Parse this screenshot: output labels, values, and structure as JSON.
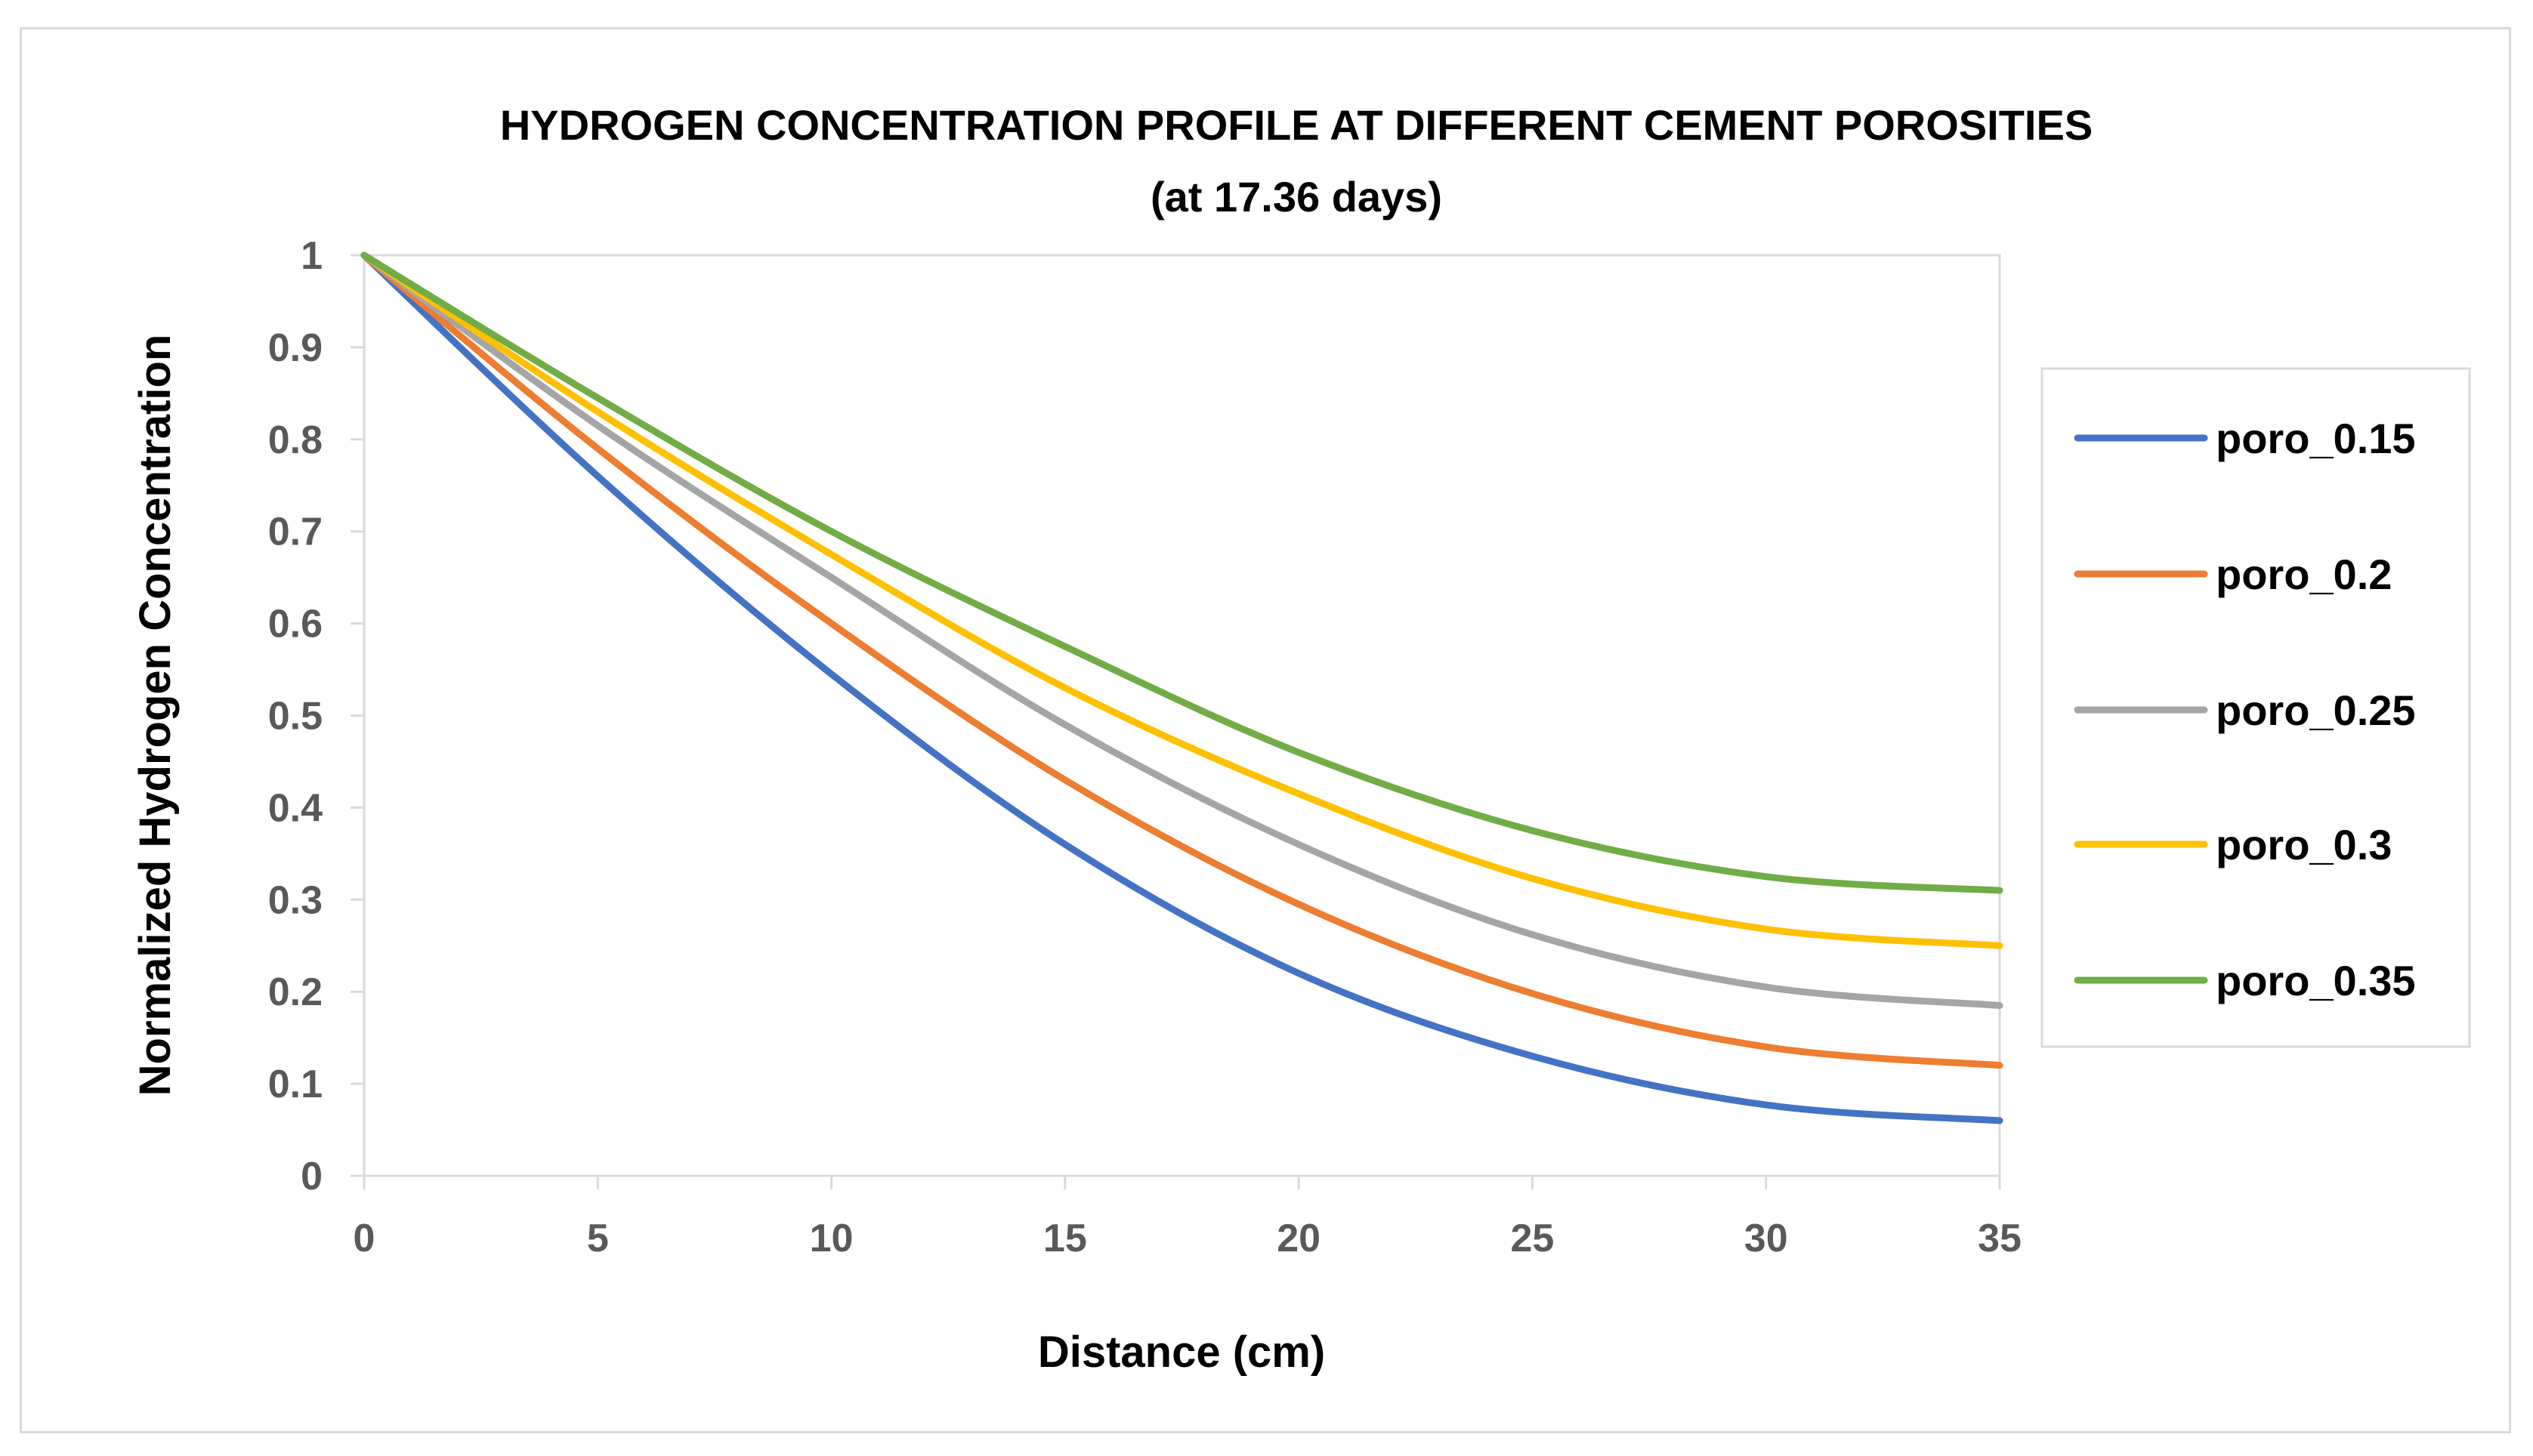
{
  "chart_data": {
    "type": "line",
    "title": "HYDROGEN CONCENTRATION PROFILE AT DIFFERENT CEMENT POROSITIES",
    "subtitle": "(at  17.36 days)",
    "xlabel": "Distance (cm)",
    "ylabel": "Normalized Hydrogen Concentration",
    "xlim": [
      0,
      35
    ],
    "ylim": [
      0,
      1
    ],
    "xticks": [
      "0",
      "5",
      "10",
      "15",
      "20",
      "25",
      "30",
      "35"
    ],
    "yticks": [
      "0",
      "0.1",
      "0.2",
      "0.3",
      "0.4",
      "0.5",
      "0.6",
      "0.7",
      "0.8",
      "0.9",
      "1"
    ],
    "grid": false,
    "legend_position": "right",
    "x": [
      0,
      5,
      10,
      15,
      20,
      25,
      30,
      35
    ],
    "series": [
      {
        "name": "poro_0.15",
        "color": "#4472c4",
        "values": [
          1.0,
          0.76,
          0.545,
          0.36,
          0.22,
          0.13,
          0.077,
          0.06
        ]
      },
      {
        "name": "poro_0.2",
        "color": "#ed7d31",
        "values": [
          1.0,
          0.79,
          0.6,
          0.43,
          0.295,
          0.198,
          0.14,
          0.12
        ]
      },
      {
        "name": "poro_0.25",
        "color": "#a5a5a5",
        "values": [
          1.0,
          0.815,
          0.65,
          0.49,
          0.36,
          0.262,
          0.205,
          0.185
        ]
      },
      {
        "name": "poro_0.3",
        "color": "#ffc000",
        "values": [
          1.0,
          0.83,
          0.675,
          0.53,
          0.415,
          0.323,
          0.268,
          0.25
        ]
      },
      {
        "name": "poro_0.35",
        "color": "#70ad47",
        "values": [
          1.0,
          0.845,
          0.7,
          0.575,
          0.46,
          0.375,
          0.325,
          0.31
        ]
      }
    ]
  }
}
